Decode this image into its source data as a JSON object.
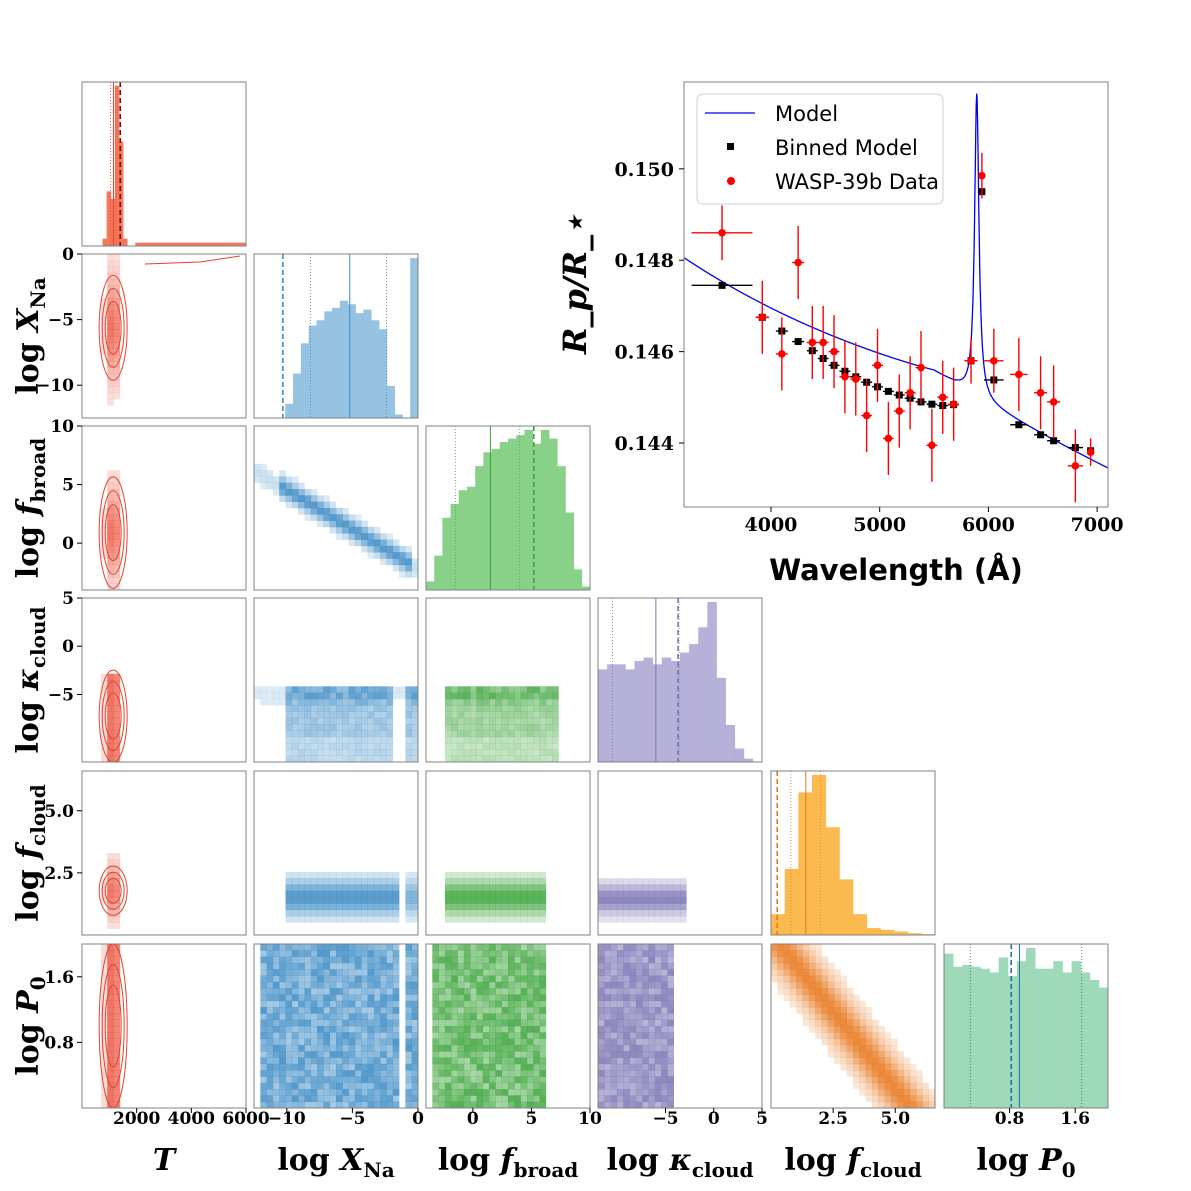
{
  "chart_data": [
    {
      "type": "corner",
      "parameters": [
        {
          "key": "T",
          "xlabel": "T",
          "range": [
            0,
            6000
          ],
          "ticks": [
            2000,
            4000,
            6000
          ],
          "tick_labels": [
            "2000",
            "4000",
            "6000"
          ],
          "color": "#e8412c",
          "hist_color": "#f26b4b",
          "posterior_mode": 1200,
          "posterior_width": 150,
          "lines": {
            "p16": 1050,
            "median": 1150,
            "p84": 1250,
            "true": 1400
          }
        },
        {
          "key": "log_XNa",
          "xlabel": "log X_Na",
          "range": [
            -12.5,
            0
          ],
          "ticks": [
            -10,
            -5,
            0
          ],
          "tick_labels": [
            "−10",
            "−5",
            "0"
          ],
          "color": "#3a8ac4",
          "hist_color": "#8cbde0",
          "hist_values": [
            0,
            0,
            0,
            0,
            0.08,
            0.25,
            0.42,
            0.52,
            0.55,
            0.6,
            0.62,
            0.66,
            0.64,
            0.59,
            0.61,
            0.55,
            0.5,
            0.18,
            0.02,
            0.0,
            0.9
          ],
          "lines": {
            "p16": -8.2,
            "median": -5.2,
            "p84": -2.4,
            "true": -10.3
          }
        },
        {
          "key": "log_fbroad",
          "xlabel": "log f_broad",
          "range": [
            -4,
            10
          ],
          "ticks": [
            0,
            5,
            10
          ],
          "tick_labels": [
            "0",
            "5",
            "10"
          ],
          "color": "#3ca43c",
          "hist_color": "#7ccc7c",
          "hist_values": [
            0.05,
            0.2,
            0.42,
            0.5,
            0.58,
            0.6,
            0.72,
            0.8,
            0.82,
            0.86,
            0.88,
            0.9,
            0.93,
            0.85,
            0.93,
            0.88,
            0.72,
            0.45,
            0.12,
            0.02
          ],
          "lines": {
            "p16": -1.5,
            "median": 1.5,
            "p84": 4.0,
            "true": 5.2
          }
        },
        {
          "key": "log_kcloud",
          "xlabel": "log κ_cloud",
          "range": [
            -12,
            5
          ],
          "ticks": [
            -5,
            0,
            5
          ],
          "tick_labels": [
            "−5",
            "0",
            "5"
          ],
          "color": "#7b74b3",
          "hist_color": "#aea9d4",
          "hist_values": [
            0.55,
            0.58,
            0.58,
            0.55,
            0.6,
            0.62,
            0.58,
            0.62,
            0.6,
            0.65,
            0.7,
            0.8,
            0.95,
            0.5,
            0.22,
            0.08,
            0.02,
            0.0
          ],
          "lines": {
            "p16": -10.5,
            "median": -6.0,
            "p84": -3.6,
            "true": -3.7
          }
        },
        {
          "key": "log_fcloud",
          "xlabel": "log f_cloud",
          "range": [
            0,
            6.6
          ],
          "ticks": [
            2.5,
            5.0
          ],
          "tick_labels": [
            "2.5",
            "5.0"
          ],
          "color": "#e8781e",
          "hist_color": "#fbb33c",
          "hist_values": [
            0.12,
            0.38,
            0.82,
            0.92,
            0.62,
            0.32,
            0.12,
            0.04,
            0.03,
            0.02,
            0.01,
            0.005
          ],
          "lines": {
            "p16": 0.8,
            "median": 1.4,
            "p84": 2.0,
            "true": 0.25
          }
        },
        {
          "key": "log_P0",
          "xlabel": "log P_0",
          "range": [
            0,
            2.0
          ],
          "ticks": [
            0.8,
            1.6
          ],
          "tick_labels": [
            "0.8",
            "1.6"
          ],
          "color": "#1d6fa8",
          "hist_color": "#93d6b2",
          "hist_values": [
            0.82,
            0.75,
            0.76,
            0.75,
            0.74,
            0.72,
            0.8,
            0.7,
            0.78,
            0.85,
            0.74,
            0.74,
            0.78,
            0.72,
            0.78,
            0.72,
            0.68,
            0.64
          ],
          "lines": {
            "p16": 0.32,
            "median": 0.92,
            "p84": 1.68,
            "true": 0.82
          }
        }
      ],
      "y_axes": [
        {
          "row": 1,
          "ylabel": "log X_Na",
          "ticks": [
            0,
            -5,
            -10
          ],
          "tick_labels": [
            "0",
            "−5",
            "−10"
          ]
        },
        {
          "row": 2,
          "ylabel": "log f_broad",
          "ticks": [
            10,
            5,
            0
          ],
          "tick_labels": [
            "10",
            "5",
            "0"
          ]
        },
        {
          "row": 3,
          "ylabel": "log κ_cloud",
          "ticks": [
            5,
            0,
            -5
          ],
          "tick_labels": [
            "5",
            "0",
            "−5"
          ]
        },
        {
          "row": 4,
          "ylabel": "log f_cloud",
          "ticks": [
            5.0,
            2.5
          ],
          "tick_labels": [
            "5.0",
            "2.5"
          ]
        },
        {
          "row": 5,
          "ylabel": "log P_0",
          "ticks": [
            1.6,
            0.8
          ],
          "tick_labels": [
            "1.6",
            "0.8"
          ]
        }
      ]
    },
    {
      "type": "line",
      "xlabel": "Wavelength (Å)",
      "ylabel": "R_p / R_⋆",
      "xlim": [
        3200,
        7100
      ],
      "ylim": [
        0.1426,
        0.1519
      ],
      "xticks": [
        4000,
        5000,
        6000,
        7000
      ],
      "xtick_labels": [
        "4000",
        "5000",
        "6000",
        "7000"
      ],
      "yticks": [
        0.144,
        0.146,
        0.148,
        0.15
      ],
      "ytick_labels": [
        "0.144",
        "0.146",
        "0.148",
        "0.150"
      ],
      "legend": {
        "position": "upper-left",
        "entries": [
          "Model",
          "Binned Model",
          "WASP-39b Data"
        ]
      },
      "binned_model": {
        "x": [
          3550,
          3920,
          4100,
          4250,
          4380,
          4480,
          4580,
          4680,
          4780,
          4880,
          4980,
          5080,
          5180,
          5280,
          5380,
          5480,
          5580,
          5680,
          5840,
          5940,
          6050,
          6280,
          6480,
          6600,
          6800,
          6940
        ],
        "y": [
          0.14745,
          0.14675,
          0.14645,
          0.14622,
          0.14602,
          0.14585,
          0.1457,
          0.14557,
          0.14545,
          0.14533,
          0.14523,
          0.14513,
          0.14505,
          0.14498,
          0.1449,
          0.14485,
          0.14482,
          0.14484,
          0.1458,
          0.1495,
          0.14538,
          0.1444,
          0.14418,
          0.14405,
          0.1439,
          0.14383
        ],
        "xerr": [
          280,
          60,
          55,
          55,
          50,
          50,
          50,
          50,
          50,
          50,
          50,
          50,
          50,
          50,
          50,
          50,
          50,
          50,
          60,
          30,
          90,
          80,
          60,
          60,
          70,
          30
        ]
      },
      "data": {
        "x": [
          3550,
          3920,
          4100,
          4250,
          4380,
          4480,
          4580,
          4680,
          4780,
          4880,
          4980,
          5080,
          5180,
          5280,
          5380,
          5480,
          5580,
          5680,
          5840,
          5940,
          6050,
          6280,
          6480,
          6600,
          6800,
          6940
        ],
        "y": [
          0.1486,
          0.14675,
          0.14595,
          0.14795,
          0.1462,
          0.1462,
          0.146,
          0.14545,
          0.1454,
          0.1446,
          0.1457,
          0.1441,
          0.1447,
          0.1451,
          0.14565,
          0.14395,
          0.145,
          0.14485,
          0.1458,
          0.14985,
          0.1458,
          0.1455,
          0.1451,
          0.1449,
          0.1435,
          0.1438
        ],
        "yerr": [
          0.0006,
          0.0008,
          0.0008,
          0.0008,
          0.0008,
          0.0008,
          0.0008,
          0.0008,
          0.0008,
          0.0008,
          0.0008,
          0.0008,
          0.0008,
          0.0008,
          0.0008,
          0.0008,
          0.0008,
          0.0008,
          0.0005,
          0.0005,
          0.0007,
          0.0008,
          0.0008,
          0.0008,
          0.0008,
          0.0003
        ],
        "xerr": [
          280,
          60,
          55,
          55,
          50,
          50,
          50,
          50,
          50,
          50,
          50,
          50,
          50,
          50,
          50,
          50,
          50,
          50,
          60,
          30,
          90,
          80,
          60,
          60,
          70,
          30
        ]
      },
      "model_peak": {
        "center": 5893,
        "height": 0.00665,
        "width": 24
      },
      "model_baseline": {
        "ref_wavelength": 3300,
        "ref_value": 0.1479,
        "decay": 0.00036,
        "floor": 0.14365
      }
    }
  ],
  "colors": {
    "model": "#0000ee",
    "binned": "#000000",
    "data": "#ff0000",
    "axis": "#808080"
  }
}
